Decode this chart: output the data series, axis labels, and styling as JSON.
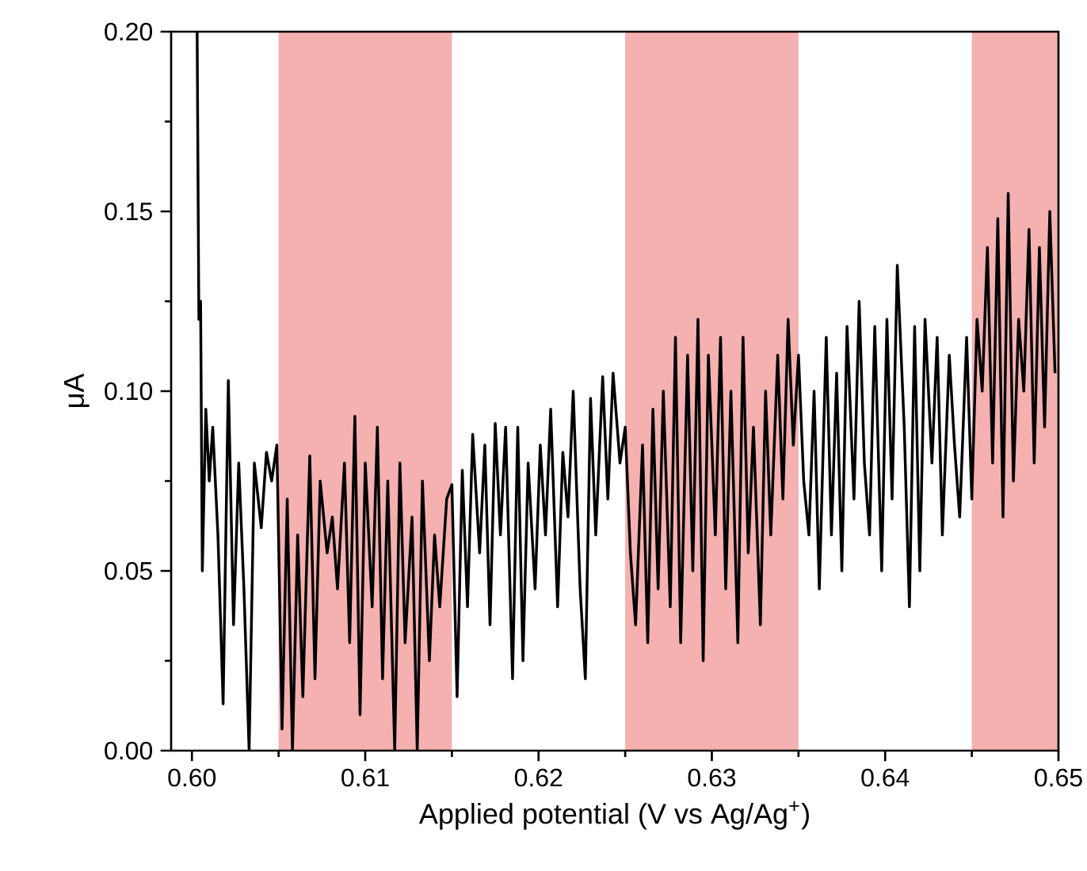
{
  "chart_data": {
    "type": "line",
    "xlabel": "Applied potential (V vs Ag/Ag$^{+}$)",
    "ylabel": "μA",
    "xlim": [
      0.5988,
      0.65
    ],
    "ylim": [
      0,
      0.2
    ],
    "xticks": [
      {
        "value": 0.6,
        "label": "0.60"
      },
      {
        "value": 0.61,
        "label": "0.61"
      },
      {
        "value": 0.62,
        "label": "0.62"
      },
      {
        "value": 0.63,
        "label": "0.63"
      },
      {
        "value": 0.64,
        "label": "0.64"
      },
      {
        "value": 0.65,
        "label": "0.65"
      }
    ],
    "yticks": [
      {
        "value": 0,
        "label": "0.00"
      },
      {
        "value": 0.05,
        "label": "0.05"
      },
      {
        "value": 0.1,
        "label": "0.10"
      },
      {
        "value": 0.15,
        "label": "0.15"
      },
      {
        "value": 0.2,
        "label": "0.20"
      }
    ],
    "bands": [
      {
        "axis": "x",
        "from": 0.605,
        "to": 0.615,
        "color": "#f5b0b0"
      },
      {
        "axis": "x",
        "from": 0.625,
        "to": 0.635,
        "color": "#f5b0b0"
      },
      {
        "axis": "x",
        "from": 0.645,
        "to": 0.65,
        "color": "#f5b0b0"
      }
    ],
    "series": [
      {
        "color": "#000000",
        "x": [
          0.6003,
          0.6004,
          0.6005,
          0.6006,
          0.6008,
          0.601,
          0.6012,
          0.6015,
          0.6018,
          0.6021,
          0.6024,
          0.6027,
          0.603,
          0.6033,
          0.6036,
          0.604,
          0.6043,
          0.6046,
          0.6049,
          0.6052,
          0.6055,
          0.6058,
          0.6061,
          0.6064,
          0.6068,
          0.6071,
          0.6074,
          0.6078,
          0.6081,
          0.6084,
          0.6088,
          0.6091,
          0.6094,
          0.6097,
          0.61,
          0.6104,
          0.6107,
          0.611,
          0.6113,
          0.6117,
          0.612,
          0.6123,
          0.6127,
          0.613,
          0.6133,
          0.6137,
          0.614,
          0.6143,
          0.6147,
          0.615,
          0.6153,
          0.6156,
          0.6159,
          0.6162,
          0.6166,
          0.6169,
          0.6172,
          0.6175,
          0.6178,
          0.6181,
          0.6185,
          0.6188,
          0.6191,
          0.6194,
          0.6198,
          0.6201,
          0.6204,
          0.6207,
          0.6211,
          0.6214,
          0.6217,
          0.622,
          0.6224,
          0.6227,
          0.623,
          0.6233,
          0.6237,
          0.624,
          0.6243,
          0.6247,
          0.625,
          0.6253,
          0.6256,
          0.626,
          0.6263,
          0.6266,
          0.6269,
          0.6272,
          0.6276,
          0.6279,
          0.6282,
          0.6286,
          0.6289,
          0.6292,
          0.6295,
          0.6298,
          0.6302,
          0.6305,
          0.6308,
          0.6311,
          0.6315,
          0.6318,
          0.6321,
          0.6324,
          0.6328,
          0.6331,
          0.6334,
          0.6338,
          0.6341,
          0.6344,
          0.6347,
          0.635,
          0.6353,
          0.6356,
          0.6359,
          0.6362,
          0.6366,
          0.6369,
          0.6372,
          0.6375,
          0.6378,
          0.6382,
          0.6385,
          0.6388,
          0.6391,
          0.6394,
          0.6398,
          0.6401,
          0.6404,
          0.6407,
          0.6411,
          0.6414,
          0.6417,
          0.642,
          0.6423,
          0.6427,
          0.643,
          0.6433,
          0.6437,
          0.644,
          0.6443,
          0.6447,
          0.645,
          0.6453,
          0.6456,
          0.6459,
          0.6462,
          0.6465,
          0.6468,
          0.6471,
          0.6474,
          0.6477,
          0.648,
          0.6483,
          0.6486,
          0.6489,
          0.6492,
          0.6495,
          0.6498
        ],
        "values": [
          0.2,
          0.12,
          0.125,
          0.05,
          0.095,
          0.075,
          0.09,
          0.06,
          0.013,
          0.103,
          0.035,
          0.08,
          0.045,
          0.0,
          0.08,
          0.062,
          0.083,
          0.075,
          0.085,
          0.006,
          0.07,
          0.0,
          0.06,
          0.015,
          0.082,
          0.02,
          0.075,
          0.055,
          0.065,
          0.045,
          0.08,
          0.03,
          0.093,
          0.01,
          0.08,
          0.04,
          0.09,
          0.02,
          0.075,
          0.0,
          0.08,
          0.03,
          0.065,
          0.0,
          0.075,
          0.025,
          0.06,
          0.04,
          0.07,
          0.074,
          0.015,
          0.078,
          0.04,
          0.088,
          0.055,
          0.085,
          0.035,
          0.091,
          0.06,
          0.09,
          0.02,
          0.09,
          0.025,
          0.08,
          0.045,
          0.085,
          0.06,
          0.095,
          0.04,
          0.083,
          0.065,
          0.1,
          0.045,
          0.02,
          0.098,
          0.06,
          0.104,
          0.07,
          0.105,
          0.08,
          0.09,
          0.055,
          0.035,
          0.085,
          0.03,
          0.095,
          0.045,
          0.1,
          0.04,
          0.115,
          0.03,
          0.11,
          0.05,
          0.12,
          0.025,
          0.11,
          0.06,
          0.115,
          0.045,
          0.1,
          0.03,
          0.115,
          0.055,
          0.09,
          0.035,
          0.1,
          0.06,
          0.11,
          0.07,
          0.12,
          0.085,
          0.11,
          0.075,
          0.06,
          0.1,
          0.045,
          0.115,
          0.06,
          0.105,
          0.05,
          0.118,
          0.07,
          0.125,
          0.08,
          0.06,
          0.118,
          0.05,
          0.12,
          0.07,
          0.135,
          0.09,
          0.04,
          0.118,
          0.05,
          0.12,
          0.08,
          0.115,
          0.06,
          0.11,
          0.085,
          0.065,
          0.115,
          0.07,
          0.12,
          0.1,
          0.14,
          0.08,
          0.148,
          0.065,
          0.155,
          0.075,
          0.12,
          0.1,
          0.145,
          0.08,
          0.14,
          0.09,
          0.15,
          0.105
        ]
      }
    ]
  }
}
